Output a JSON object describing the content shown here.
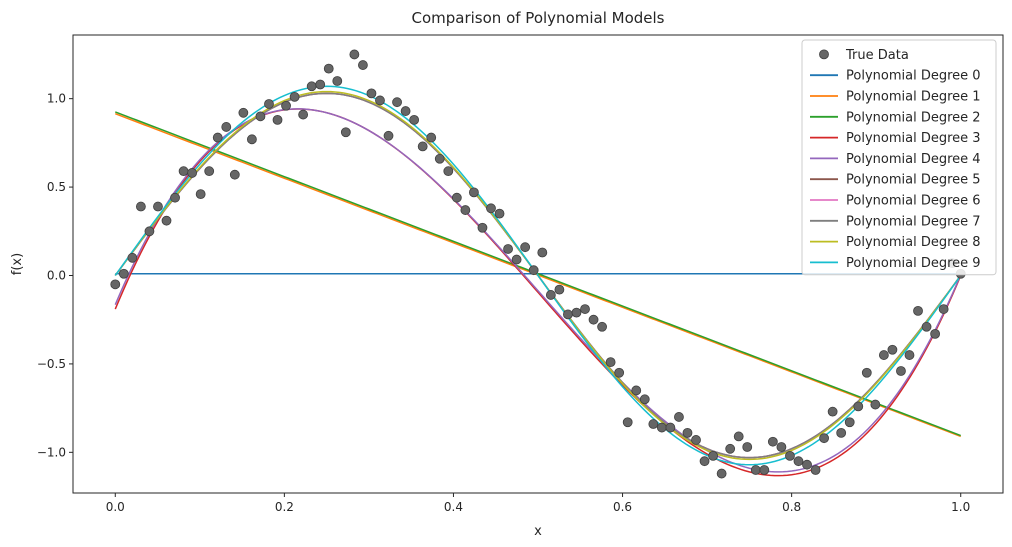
{
  "chart_data": {
    "type": "line",
    "title": "Comparison of Polynomial Models",
    "xlabel": "x",
    "ylabel": "f(x)",
    "xlim": [
      -0.05,
      1.05
    ],
    "ylim": [
      -1.23,
      1.36
    ],
    "xticks": [
      0.0,
      0.2,
      0.4,
      0.6,
      0.8,
      1.0
    ],
    "xtick_labels": [
      "0.0",
      "0.2",
      "0.4",
      "0.6",
      "0.8",
      "1.0"
    ],
    "yticks": [
      -1.0,
      -0.5,
      0.0,
      0.5,
      1.0
    ],
    "ytick_labels": [
      "−1.0",
      "−0.5",
      "0.0",
      "0.5",
      "1.0"
    ],
    "grid": false,
    "legend_position": "top-right",
    "scatter": {
      "name": "True Data",
      "color": "#666666",
      "x": [
        0.0,
        0.0101,
        0.0202,
        0.0303,
        0.0404,
        0.0505,
        0.0606,
        0.0707,
        0.0808,
        0.0909,
        0.101,
        0.1111,
        0.1212,
        0.1313,
        0.1414,
        0.1515,
        0.1616,
        0.1717,
        0.1818,
        0.1919,
        0.202,
        0.2121,
        0.2222,
        0.2323,
        0.2424,
        0.2525,
        0.2626,
        0.2727,
        0.2828,
        0.2929,
        0.303,
        0.3131,
        0.3232,
        0.3333,
        0.3434,
        0.3535,
        0.3636,
        0.3737,
        0.3838,
        0.3939,
        0.404,
        0.4141,
        0.4242,
        0.4343,
        0.4444,
        0.4545,
        0.4646,
        0.4747,
        0.4848,
        0.4949,
        0.5051,
        0.5152,
        0.5253,
        0.5354,
        0.5455,
        0.5556,
        0.5657,
        0.5758,
        0.5859,
        0.596,
        0.6061,
        0.6162,
        0.6263,
        0.6364,
        0.6465,
        0.6566,
        0.6667,
        0.6768,
        0.6869,
        0.697,
        0.7071,
        0.7172,
        0.7273,
        0.7374,
        0.7475,
        0.7576,
        0.7677,
        0.7778,
        0.7879,
        0.798,
        0.8081,
        0.8182,
        0.8283,
        0.8384,
        0.8485,
        0.8586,
        0.8687,
        0.8788,
        0.8889,
        0.899,
        0.9091,
        0.9192,
        0.9293,
        0.9394,
        0.9495,
        0.9596,
        0.9697,
        0.9798,
        0.9899,
        1.0
      ],
      "y": [
        -0.05,
        0.01,
        0.1,
        0.39,
        0.25,
        0.39,
        0.31,
        0.44,
        0.59,
        0.58,
        0.46,
        0.59,
        0.78,
        0.84,
        0.57,
        0.92,
        0.77,
        0.9,
        0.97,
        0.88,
        0.96,
        1.01,
        0.91,
        1.07,
        1.08,
        1.17,
        1.1,
        0.81,
        1.25,
        1.19,
        1.03,
        0.99,
        0.79,
        0.98,
        0.93,
        0.88,
        0.73,
        0.78,
        0.66,
        0.59,
        0.44,
        0.37,
        0.47,
        0.27,
        0.38,
        0.35,
        0.15,
        0.09,
        0.16,
        0.03,
        0.13,
        -0.11,
        -0.08,
        -0.22,
        -0.21,
        -0.19,
        -0.25,
        -0.29,
        -0.49,
        -0.55,
        -0.83,
        -0.65,
        -0.7,
        -0.84,
        -0.86,
        -0.86,
        -0.8,
        -0.89,
        -0.93,
        -1.05,
        -1.02,
        -1.12,
        -0.98,
        -0.91,
        -0.97,
        -1.1,
        -1.1,
        -0.94,
        -0.97,
        -1.02,
        -1.05,
        -1.07,
        -1.1,
        -0.92,
        -0.77,
        -0.89,
        -0.83,
        -0.74,
        -0.55,
        -0.73,
        -0.45,
        -0.42,
        -0.54,
        -0.45,
        -0.2,
        -0.29,
        -0.33,
        -0.19,
        0.07,
        0.01
      ]
    },
    "series": [
      {
        "name": "Polynomial Degree 0",
        "color": "#1f77b4",
        "coef": [
          0.01
        ]
      },
      {
        "name": "Polynomial Degree 1",
        "color": "#ff7f0e",
        "coef": [
          0.915,
          -1.825
        ]
      },
      {
        "name": "Polynomial Degree 2",
        "color": "#2ca02c",
        "coef": [
          0.925,
          -1.83
        ]
      },
      {
        "name": "Polynomial Degree 3",
        "color": "#d62728",
        "coef": [
          -0.19,
          11.53,
          -34.02,
          22.68
        ]
      },
      {
        "name": "Polynomial Degree 4",
        "color": "#9467bd",
        "coef": [
          -0.165,
          11.32,
          -33.5,
          22.35
        ]
      },
      {
        "name": "Polynomial Degree 5",
        "color": "#8c564b",
        "sin": {
          "amp": 1.03,
          "offset": 0.0
        }
      },
      {
        "name": "Polynomial Degree 6",
        "color": "#e377c2",
        "sin": {
          "amp": 1.03,
          "offset": 0.0
        }
      },
      {
        "name": "Polynomial Degree 7",
        "color": "#7f7f7f",
        "sin": {
          "amp": 1.03,
          "offset": 0.0
        }
      },
      {
        "name": "Polynomial Degree 8",
        "color": "#bcbd22",
        "sin": {
          "amp": 1.04,
          "offset": 0.0
        }
      },
      {
        "name": "Polynomial Degree 9",
        "color": "#17becf",
        "sin": {
          "amp": 1.07,
          "offset": 0.0
        }
      }
    ]
  }
}
